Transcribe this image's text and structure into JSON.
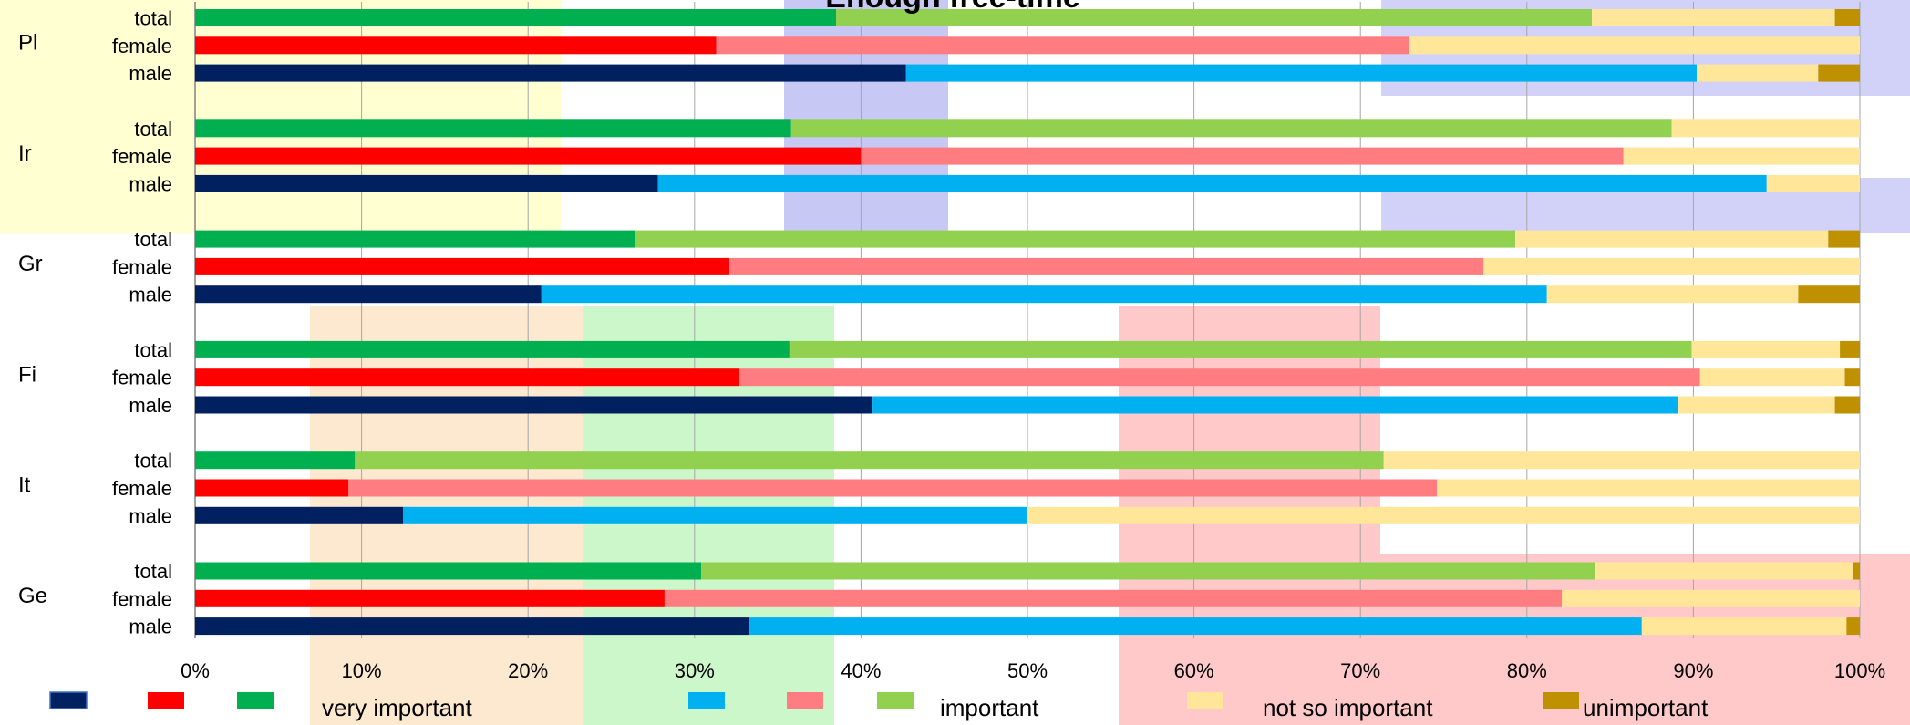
{
  "chart_data": {
    "type": "bar",
    "orientation": "horizontal",
    "stacked": "100%",
    "title": "Enough free-time",
    "xlim": [
      0,
      100
    ],
    "x_ticks": [
      "0%",
      "10%",
      "20%",
      "30%",
      "40%",
      "50%",
      "60%",
      "70%",
      "80%",
      "90%",
      "100%"
    ],
    "grid": true,
    "legend_position": "bottom",
    "categories_levels": [
      "very important",
      "important",
      "not so important",
      "unimportant"
    ],
    "groups": [
      {
        "country": "Pl",
        "rows": [
          {
            "label": "total",
            "values": [
              38.5,
              45.4,
              14.6,
              1.5
            ]
          },
          {
            "label": "female",
            "values": [
              31.3,
              41.6,
              27.1,
              0.0
            ]
          },
          {
            "label": "male",
            "values": [
              42.7,
              47.5,
              7.3,
              2.5
            ]
          }
        ]
      },
      {
        "country": "Ir",
        "rows": [
          {
            "label": "total",
            "values": [
              35.8,
              52.9,
              11.3,
              0.0
            ]
          },
          {
            "label": "female",
            "values": [
              40.0,
              45.8,
              14.2,
              0.0
            ]
          },
          {
            "label": "male",
            "values": [
              27.8,
              66.6,
              5.6,
              0.0
            ]
          }
        ]
      },
      {
        "country": "Gr",
        "rows": [
          {
            "label": "total",
            "values": [
              26.4,
              52.9,
              18.8,
              1.9
            ]
          },
          {
            "label": "female",
            "values": [
              32.1,
              45.3,
              22.6,
              0.0
            ]
          },
          {
            "label": "male",
            "values": [
              20.8,
              60.4,
              15.1,
              3.7
            ]
          }
        ]
      },
      {
        "country": "Fi",
        "rows": [
          {
            "label": "total",
            "values": [
              35.7,
              54.2,
              8.9,
              1.2
            ]
          },
          {
            "label": "female",
            "values": [
              32.7,
              57.7,
              8.7,
              0.9
            ]
          },
          {
            "label": "male",
            "values": [
              40.7,
              48.4,
              9.4,
              1.5
            ]
          }
        ]
      },
      {
        "country": "It",
        "rows": [
          {
            "label": "total",
            "values": [
              9.6,
              61.8,
              28.6,
              0.0
            ]
          },
          {
            "label": "female",
            "values": [
              9.2,
              65.4,
              25.4,
              0.0
            ]
          },
          {
            "label": "male",
            "values": [
              12.5,
              37.5,
              50.0,
              0.0
            ]
          }
        ]
      },
      {
        "country": "Ge",
        "rows": [
          {
            "label": "total",
            "values": [
              30.4,
              53.7,
              15.5,
              0.4
            ]
          },
          {
            "label": "female",
            "values": [
              28.2,
              53.9,
              17.9,
              0.0
            ]
          },
          {
            "label": "male",
            "values": [
              33.3,
              53.6,
              12.3,
              0.8
            ]
          }
        ]
      }
    ],
    "colors": {
      "total": [
        "#00b050",
        "#92d050",
        "#ffe699",
        "#bf9000"
      ],
      "female": [
        "#ff0000",
        "#ff7c80",
        "#ffe699",
        "#bf9000"
      ],
      "male": [
        "#002060",
        "#00b0f0",
        "#ffe699",
        "#bf9000"
      ]
    },
    "legend": {
      "items": [
        {
          "swatches": [
            "#002060",
            "#ff0000",
            "#00b050"
          ],
          "label": "very important"
        },
        {
          "swatches": [
            "#00b0f0",
            "#ff7c80",
            "#92d050"
          ],
          "label": "important"
        },
        {
          "swatches": [
            "#ffe699"
          ],
          "label": "not so important"
        },
        {
          "swatches": [
            "#bf9000"
          ],
          "label": "unimportant"
        }
      ]
    }
  }
}
